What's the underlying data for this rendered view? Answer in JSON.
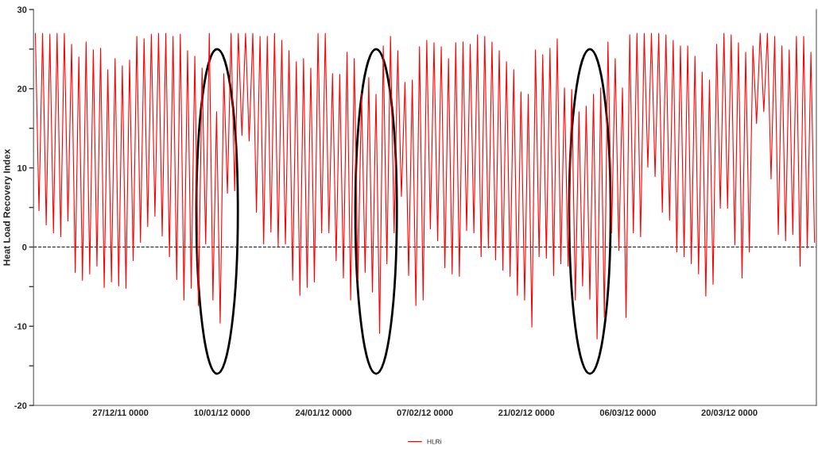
{
  "chart_data": {
    "type": "line",
    "ylabel": "Heat Load Recovery Index",
    "xlim": [
      "2011-12-15",
      "2012-04-01"
    ],
    "xticks": [
      {
        "value": "2011-12-27",
        "label": "27/12/11 0000"
      },
      {
        "value": "2012-01-10",
        "label": "10/01/12 0000"
      },
      {
        "value": "2012-01-24",
        "label": "24/01/12 0000"
      },
      {
        "value": "2012-02-07",
        "label": "07/02/12 0000"
      },
      {
        "value": "2012-02-21",
        "label": "21/02/12 0000"
      },
      {
        "value": "2012-03-06",
        "label": "06/03/12 0000"
      },
      {
        "value": "2012-03-20",
        "label": "20/03/12 0000"
      }
    ],
    "ylim": [
      -20,
      30
    ],
    "yticks": [
      -20,
      {
        "value": -15,
        "label": null
      },
      -10,
      {
        "value": -5,
        "label": null
      },
      0,
      {
        "value": 5,
        "label": null
      },
      10,
      {
        "value": 15,
        "label": null
      },
      20,
      {
        "value": 25,
        "label": null
      },
      30
    ],
    "grid": false,
    "legend": "bottom",
    "marker": "none",
    "line_style": "solid",
    "ref_lines": [
      {
        "axis": "y",
        "value": 0,
        "color": "#333333",
        "line_style": "dashed"
      }
    ],
    "series": [
      {
        "name": "HLRi",
        "color": "#ff0000",
        "x": [
          "2011-12-15T06:00",
          "2011-12-15T18:00",
          "2011-12-16T06:00",
          "2011-12-16T18:00",
          "2011-12-17T06:00",
          "2011-12-17T18:00",
          "2011-12-18T06:00",
          "2011-12-18T18:00",
          "2011-12-19T06:00",
          "2011-12-19T18:00",
          "2011-12-20T06:00",
          "2011-12-20T18:00",
          "2011-12-21T06:00",
          "2011-12-21T18:00",
          "2011-12-22T06:00",
          "2011-12-22T18:00",
          "2011-12-23T06:00",
          "2011-12-23T18:00",
          "2011-12-24T06:00",
          "2011-12-24T18:00",
          "2011-12-25T06:00",
          "2011-12-25T18:00",
          "2011-12-26T06:00",
          "2011-12-26T18:00",
          "2011-12-27T06:00",
          "2011-12-27T18:00",
          "2011-12-28T06:00",
          "2011-12-28T18:00",
          "2011-12-29T06:00",
          "2011-12-29T18:00",
          "2011-12-30T06:00",
          "2011-12-30T18:00",
          "2011-12-31T06:00",
          "2011-12-31T18:00",
          "2012-01-01T06:00",
          "2012-01-01T18:00",
          "2012-01-02T06:00",
          "2012-01-02T18:00",
          "2012-01-03T06:00",
          "2012-01-03T18:00",
          "2012-01-04T06:00",
          "2012-01-04T18:00",
          "2012-01-05T06:00",
          "2012-01-05T18:00",
          "2012-01-06T06:00",
          "2012-01-06T18:00",
          "2012-01-07T06:00",
          "2012-01-07T18:00",
          "2012-01-08T06:00",
          "2012-01-08T18:00",
          "2012-01-09T06:00",
          "2012-01-09T18:00",
          "2012-01-10T06:00",
          "2012-01-10T18:00",
          "2012-01-11T06:00",
          "2012-01-11T18:00",
          "2012-01-12T06:00",
          "2012-01-12T18:00",
          "2012-01-13T06:00",
          "2012-01-13T18:00",
          "2012-01-14T06:00",
          "2012-01-14T18:00",
          "2012-01-15T06:00",
          "2012-01-15T18:00",
          "2012-01-16T06:00",
          "2012-01-16T18:00",
          "2012-01-17T06:00",
          "2012-01-17T18:00",
          "2012-01-18T06:00",
          "2012-01-18T18:00",
          "2012-01-19T06:00",
          "2012-01-19T18:00",
          "2012-01-20T06:00",
          "2012-01-20T18:00",
          "2012-01-21T06:00",
          "2012-01-21T18:00",
          "2012-01-22T06:00",
          "2012-01-22T18:00",
          "2012-01-23T06:00",
          "2012-01-23T18:00",
          "2012-01-24T06:00",
          "2012-01-24T18:00",
          "2012-01-25T06:00",
          "2012-01-25T18:00",
          "2012-01-26T06:00",
          "2012-01-26T18:00",
          "2012-01-27T06:00",
          "2012-01-27T18:00",
          "2012-01-28T06:00",
          "2012-01-28T18:00",
          "2012-01-29T06:00",
          "2012-01-29T18:00",
          "2012-01-30T06:00",
          "2012-01-30T18:00",
          "2012-01-31T06:00",
          "2012-01-31T18:00",
          "2012-02-01T06:00",
          "2012-02-01T18:00",
          "2012-02-02T06:00",
          "2012-02-02T18:00",
          "2012-02-03T06:00",
          "2012-02-03T18:00",
          "2012-02-04T06:00",
          "2012-02-04T18:00",
          "2012-02-05T06:00",
          "2012-02-05T18:00",
          "2012-02-06T06:00",
          "2012-02-06T18:00",
          "2012-02-07T06:00",
          "2012-02-07T18:00",
          "2012-02-08T06:00",
          "2012-02-08T18:00",
          "2012-02-09T06:00",
          "2012-02-09T18:00",
          "2012-02-10T06:00",
          "2012-02-10T18:00",
          "2012-02-11T06:00",
          "2012-02-11T18:00",
          "2012-02-12T06:00",
          "2012-02-12T18:00",
          "2012-02-13T06:00",
          "2012-02-13T18:00",
          "2012-02-14T06:00",
          "2012-02-14T18:00",
          "2012-02-15T06:00",
          "2012-02-15T18:00",
          "2012-02-16T06:00",
          "2012-02-16T18:00",
          "2012-02-17T06:00",
          "2012-02-17T18:00",
          "2012-02-18T06:00",
          "2012-02-18T18:00",
          "2012-02-19T06:00",
          "2012-02-19T18:00",
          "2012-02-20T06:00",
          "2012-02-20T18:00",
          "2012-02-21T06:00",
          "2012-02-21T18:00",
          "2012-02-22T06:00",
          "2012-02-22T18:00",
          "2012-02-23T06:00",
          "2012-02-23T18:00",
          "2012-02-24T06:00",
          "2012-02-24T18:00",
          "2012-02-25T06:00",
          "2012-02-25T18:00",
          "2012-02-26T06:00",
          "2012-02-26T18:00",
          "2012-02-27T06:00",
          "2012-02-27T18:00",
          "2012-02-28T06:00",
          "2012-02-28T18:00",
          "2012-02-29T06:00",
          "2012-02-29T18:00",
          "2012-03-01T06:00",
          "2012-03-01T18:00",
          "2012-03-02T06:00",
          "2012-03-02T18:00",
          "2012-03-03T06:00",
          "2012-03-03T18:00",
          "2012-03-04T06:00",
          "2012-03-04T18:00",
          "2012-03-05T06:00",
          "2012-03-05T18:00",
          "2012-03-06T06:00",
          "2012-03-06T18:00",
          "2012-03-07T06:00",
          "2012-03-07T18:00",
          "2012-03-08T06:00",
          "2012-03-08T18:00",
          "2012-03-09T06:00",
          "2012-03-09T18:00",
          "2012-03-10T06:00",
          "2012-03-10T18:00",
          "2012-03-11T06:00",
          "2012-03-11T18:00",
          "2012-03-12T06:00",
          "2012-03-12T18:00",
          "2012-03-13T06:00",
          "2012-03-13T18:00",
          "2012-03-14T06:00",
          "2012-03-14T18:00",
          "2012-03-15T06:00",
          "2012-03-15T18:00",
          "2012-03-16T06:00",
          "2012-03-16T18:00",
          "2012-03-17T06:00",
          "2012-03-17T18:00",
          "2012-03-18T06:00",
          "2012-03-18T18:00",
          "2012-03-19T06:00",
          "2012-03-19T18:00",
          "2012-03-20T06:00",
          "2012-03-20T18:00",
          "2012-03-21T06:00",
          "2012-03-21T18:00",
          "2012-03-22T06:00",
          "2012-03-22T18:00",
          "2012-03-23T06:00",
          "2012-03-23T18:00",
          "2012-03-24T06:00",
          "2012-03-24T18:00",
          "2012-03-25T06:00",
          "2012-03-25T18:00",
          "2012-03-26T06:00",
          "2012-03-26T18:00",
          "2012-03-27T06:00",
          "2012-03-27T18:00",
          "2012-03-28T06:00",
          "2012-03-28T18:00",
          "2012-03-29T06:00",
          "2012-03-29T18:00",
          "2012-03-30T06:00",
          "2012-03-30T18:00",
          "2012-03-31T06:00",
          "2012-03-31T18:00"
        ],
        "values": [
          27,
          4.6,
          27,
          2.8,
          26.9,
          1.8,
          27,
          1.3,
          27,
          3.3,
          25.6,
          -3.2,
          24,
          -4.2,
          25.9,
          -3.4,
          24.9,
          -2.4,
          25.1,
          -5.1,
          22.4,
          -4.4,
          23.8,
          -4.9,
          22.9,
          -5.2,
          23.6,
          -1.7,
          26.6,
          0.6,
          26.3,
          2.6,
          26.9,
          3.9,
          27,
          1.4,
          27,
          -1.2,
          26.6,
          -4.1,
          26.9,
          -6.7,
          24.8,
          -5.2,
          24.1,
          -7.4,
          22.6,
          0.4,
          27,
          -6.7,
          17.1,
          -9.6,
          21.9,
          6.8,
          27,
          7.1,
          27,
          14.1,
          27,
          13.4,
          27,
          4.4,
          26.6,
          0.4,
          26.6,
          1.9,
          27,
          0.1,
          26.1,
          0.4,
          24.8,
          -4.2,
          23.4,
          -6.1,
          23.8,
          -5.1,
          22.6,
          -4.4,
          27,
          1.8,
          27,
          1.8,
          21.9,
          -1.7,
          21.8,
          -3.9,
          24.6,
          -6.7,
          23.8,
          -4.2,
          19.4,
          -3.2,
          21.4,
          -5.7,
          19.3,
          -10.9,
          25.4,
          -2.1,
          26.6,
          1.8,
          24.8,
          6.4,
          20.8,
          -3.6,
          21.1,
          -7.4,
          25.3,
          -6.7,
          26.1,
          2.3,
          25.8,
          0.8,
          25.3,
          -2.6,
          23.8,
          -3.4,
          25.8,
          -3.7,
          25.9,
          2.1,
          25.6,
          1.8,
          26.8,
          -1.2,
          26.6,
          -0.1,
          25.9,
          -1.6,
          24.8,
          -2.9,
          23.4,
          -3.7,
          22.4,
          -6.1,
          19.6,
          -6.7,
          19.3,
          -10.1,
          24.9,
          -1.2,
          24.3,
          -1.4,
          25.1,
          -3.6,
          26.3,
          -2.1,
          20.1,
          -2.4,
          19.9,
          -6.7,
          17.1,
          -4.9,
          17.8,
          -6.6,
          19.3,
          -11.6,
          20.1,
          -8.9,
          25.9,
          1.8,
          23.8,
          -0.4,
          20.1,
          -8.9,
          26.8,
          1.8,
          27,
          1.3,
          27,
          10.1,
          27,
          8.9,
          27,
          4.4,
          26.8,
          3.4,
          26.1,
          -0.6,
          25.4,
          -1.2,
          25.4,
          -2.1,
          24.1,
          -3.4,
          22.1,
          -6.2,
          21.1,
          -4.7,
          25.6,
          4.9,
          27,
          4.9,
          26.8,
          0.3,
          25.8,
          -3.9,
          24.6,
          -0.6,
          25.4,
          15.6,
          27,
          17.1,
          27,
          8.6,
          26.6,
          1.6,
          25.4,
          0.8,
          24.9,
          1.6,
          26.6,
          -2.4,
          26.6,
          -0.1,
          24.6,
          0.6
        ]
      }
    ]
  }
}
